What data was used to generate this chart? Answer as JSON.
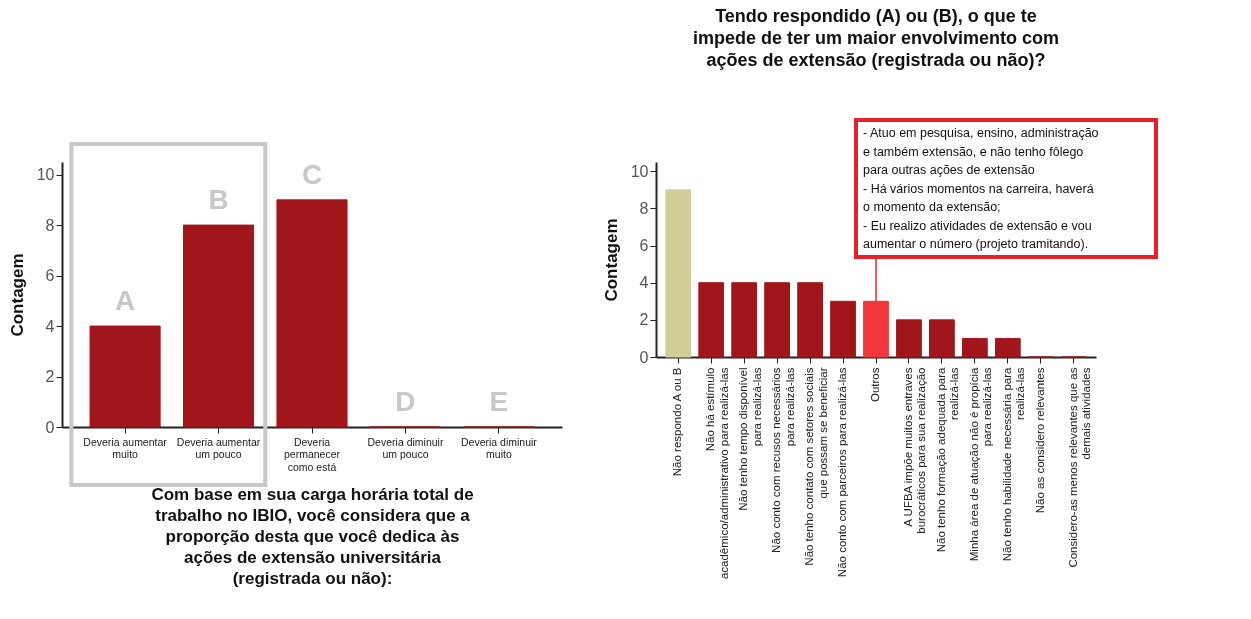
{
  "chart_data": [
    {
      "type": "bar",
      "xlabel": "Com base em sua carga horária total de\ntrabalho no IBIO, você considera que a\nproporção desta que você dedica às\nações de extensão universitária\n(registrada ou não):",
      "ylabel": "Contagem",
      "categories": [
        "Deveria aumentar\nmuito",
        "Deveria aumentar\num pouco",
        "Deveria\npermanecer\ncomo está",
        "Deveria diminuir\num pouco",
        "Deveria diminuir\nmuito"
      ],
      "values": [
        4,
        8,
        9,
        0,
        0
      ],
      "color": "#a0161b",
      "ylim": [
        0,
        10.5
      ],
      "yticks": [
        0,
        2,
        4,
        6,
        8,
        10
      ],
      "grid": false,
      "annotations": [
        {
          "text": "A",
          "x": "Deveria aumentar\nmuito",
          "y": 4
        },
        {
          "text": "B",
          "x": "Deveria aumentar\num pouco",
          "y": 8
        },
        {
          "text": "C",
          "x": "Deveria\npermanecer\ncomo está",
          "y": 9
        },
        {
          "text": "D",
          "x": "Deveria diminuir\num pouco",
          "y": 0
        },
        {
          "text": "E",
          "x": "Deveria diminuir\nmuito",
          "y": 0
        }
      ]
    },
    {
      "type": "bar",
      "title": "Tendo respondido (A) ou (B), o que te\nimpede de ter um maior envolvimento com\nações de extensão (registrada ou não)?",
      "ylabel": "Contagem",
      "categories": [
        "Não respondo A ou B",
        "Não há estímulo\nacadêmico/administrativo para realizá-las",
        "Não tenho tempo disponível\npara realizá-las",
        "Não conto com recusos necessários\npara realizá-las",
        "Não tenho contato com setores sociais\nque possam se beneficiar",
        "Não conto com parceiros para realizá-las",
        "Outros",
        "A UFBA impõe muitos entraves\nburocráticos para sua realização",
        "Não tenho formação adequada para\nrealizá-las",
        "Minha área de atuação não é propícia\npara realizá-las",
        "Não tenho habilidade necessária para\nrealizá-las",
        "Não as considero relevantes",
        "Considero-as menos relevantes que as\ndemais atividades"
      ],
      "values": [
        9,
        4,
        4,
        4,
        4,
        3,
        3,
        2,
        2,
        1,
        1,
        0,
        0
      ],
      "colors": [
        "#d3cd98",
        "#a0161b",
        "#a0161b",
        "#a0161b",
        "#a0161b",
        "#a0161b",
        "#f0353b",
        "#a0161b",
        "#a0161b",
        "#a0161b",
        "#a0161b",
        "#a0161b",
        "#a0161b"
      ],
      "ylim": [
        0,
        10.5
      ],
      "yticks": [
        0,
        2,
        4,
        6,
        8,
        10
      ],
      "grid": false,
      "annotations": [
        {
          "text": "- Atuo em pesquisa, ensino, administração\n  e também extensão, e não tenho fôlego\n  para outras ações de extensão\n- Há vários momentos na carreira, haverá\n  o momento da extensão;\n- Eu realizo atividades de extensão e vou\n  aumentar o número (projeto tramitando).",
          "x": "Outros",
          "y": 3
        }
      ]
    }
  ]
}
